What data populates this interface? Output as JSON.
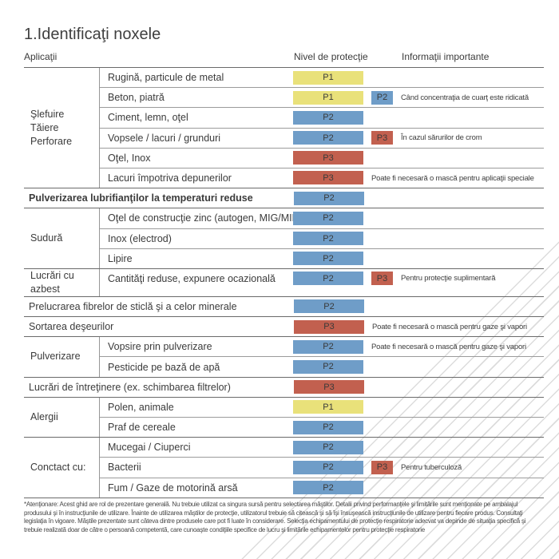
{
  "page": {
    "title": "1.Identificaţi noxele",
    "header": {
      "applications": "Aplicaţii",
      "protection_level": "Nivel de protecţie",
      "important_info": "Informaţii importante"
    },
    "footnote": "*Atenţionare: Acest ghid are rol de prezentare generală. Nu trebuie utilizat ca singura sursă pentru selectarea măştilor. Detalii privind performanţele şi limitările sunt menţionate pe ambalajul produsului şi în instrucţiunile de utilizare. Înainte de utilizarea măştilor de protecţie, utilizatorul trebuie să citească şi să îşi însuşească instrucţiunile de utilizare pentru fiecare produs. Consultaţi legislaţia în vigoare. Măştile prezentate sunt câteva dintre produsele care pot fi luate în considerare. Selecţia echipamentului de protecţie respiratorie adecvat va depinde de situaţia specifică şi trebuie realizată doar de către o persoană competentă, care cunoaşte condiţiile specifice de lucru şi limitările echipamentelor pentru protecţie respiratorie"
  },
  "colors": {
    "P1": "#e9e17a",
    "P2": "#6f9dc8",
    "P3": "#c2604f",
    "badge_text": "#3a3a3a",
    "section_line": "#6a6a6a",
    "row_line": "#9b9b9b"
  },
  "table": {
    "sections": [
      {
        "category": "Şlefuire\nTăiere\nPerforare",
        "bold": false,
        "rows": [
          {
            "label": "Rugină, particule de metal",
            "badge": "P1"
          },
          {
            "label": "Beton, piatră",
            "badge": "P1",
            "badge2": "P2",
            "note": "Când concentraţia de cuarţ este ridicată"
          },
          {
            "label": "Ciment, lemn, oţel",
            "badge": "P2"
          },
          {
            "label": "Vopsele / lacuri / grunduri",
            "badge": "P2",
            "badge2": "P3",
            "note": "În cazul sărurilor de crom"
          },
          {
            "label": "Oţel, Inox",
            "badge": "P3"
          },
          {
            "label": "Lacuri împotriva depunerilor",
            "badge": "P3",
            "note": "Poate fi necesară o mască pentru aplicaţii speciale"
          }
        ]
      },
      {
        "category": null,
        "bold": true,
        "rows": [
          {
            "label": "Pulverizarea lubrifianţilor la temperaturi reduse",
            "badge": "P2"
          }
        ]
      },
      {
        "category": "Sudură",
        "bold": false,
        "rows": [
          {
            "label": "Oţel de construcţie zinc (autogen, MIG/MIK)",
            "badge": "P2"
          },
          {
            "label": "Inox (electrod)",
            "badge": "P2"
          },
          {
            "label": "Lipire",
            "badge": "P2"
          }
        ]
      },
      {
        "category": "Lucrări cu azbest",
        "bold": false,
        "rows": [
          {
            "label": "Cantităţi reduse, expunere ocazională",
            "badge": "P2",
            "badge2": "P3",
            "note": "Pentru protecţie suplimentară"
          }
        ]
      },
      {
        "category": null,
        "bold": false,
        "rows": [
          {
            "label": "Prelucrarea fibrelor de sticlă şi a celor minerale",
            "badge": "P2"
          }
        ]
      },
      {
        "category": null,
        "bold": false,
        "rows": [
          {
            "label": "Sortarea deşeurilor",
            "badge": "P3",
            "note": "Poate fi necesară o mască pentru gaze şi vapori"
          }
        ]
      },
      {
        "category": "Pulverizare",
        "bold": false,
        "rows": [
          {
            "label": "Vopsire prin pulverizare",
            "badge": "P2",
            "note": "Poate fi necesară o mască pentru gaze şi vapori"
          },
          {
            "label": "Pesticide pe bază de apă",
            "badge": "P2"
          }
        ]
      },
      {
        "category": null,
        "bold": false,
        "rows": [
          {
            "label": "Lucrări de întreţinere (ex. schimbarea filtrelor)",
            "badge": "P3"
          }
        ]
      },
      {
        "category": "Alergii",
        "bold": false,
        "rows": [
          {
            "label": "Polen, animale",
            "badge": "P1"
          },
          {
            "label": "Praf de cereale",
            "badge": "P2"
          }
        ]
      },
      {
        "category": "Conctact cu:",
        "bold": false,
        "rows": [
          {
            "label": "Mucegai / Ciuperci",
            "badge": "P2"
          },
          {
            "label": "Bacterii",
            "badge": "P2",
            "badge2": "P3",
            "note": "Pentru tuberculoză"
          },
          {
            "label": "Fum / Gaze de motorină arsă",
            "badge": "P2"
          }
        ]
      }
    ]
  }
}
